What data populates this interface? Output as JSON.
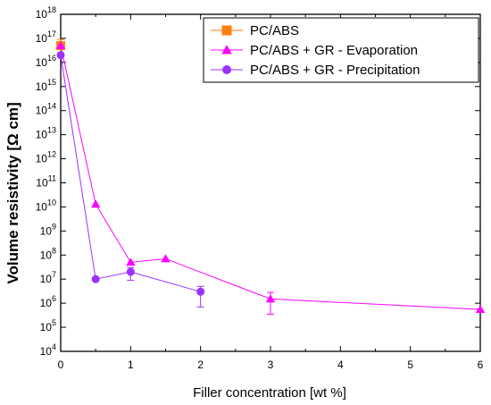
{
  "chart_data": {
    "type": "line",
    "xlabel": "Filler concentration [wt %]",
    "ylabel": "Volume resistivity [Ω cm]",
    "xlim": [
      0,
      6
    ],
    "ylim_exponent": [
      4,
      18
    ],
    "y_scale": "log",
    "x_ticks": [
      "0",
      "1",
      "2",
      "3",
      "4",
      "5",
      "6"
    ],
    "y_tick_exponents": [
      "4",
      "5",
      "6",
      "7",
      "8",
      "9",
      "10",
      "11",
      "12",
      "13",
      "14",
      "15",
      "16",
      "17",
      "18"
    ],
    "y_tick_base": "10",
    "legend_position": "top-right",
    "grid": false,
    "series": [
      {
        "name": "PC/ABS",
        "marker": "square",
        "color": "#ff7f0e",
        "points": [
          {
            "x": 0,
            "y": 5e+16,
            "err_low": 2.5e+16,
            "err_high": 9e+16
          }
        ]
      },
      {
        "name": "PC/ABS + GR - Evaporation",
        "marker": "triangle",
        "color": "#ff00ff",
        "points": [
          {
            "x": 0,
            "y": 5e+16
          },
          {
            "x": 0.5,
            "y": 13000000000.0
          },
          {
            "x": 1,
            "y": 50000000.0
          },
          {
            "x": 1.5,
            "y": 70000000.0
          },
          {
            "x": 3,
            "y": 1500000.0,
            "err_low": 350000.0,
            "err_high": 2800000.0
          },
          {
            "x": 6,
            "y": 550000.0
          }
        ]
      },
      {
        "name": "PC/ABS + GR - Precipitation",
        "marker": "circle",
        "color": "#9b30ff",
        "points": [
          {
            "x": 0,
            "y": 2e+16
          },
          {
            "x": 0.5,
            "y": 10000000.0
          },
          {
            "x": 1,
            "y": 20000000.0,
            "err_low": 9000000.0,
            "err_high": 30000000.0
          },
          {
            "x": 2,
            "y": 3000000.0,
            "err_low": 700000.0,
            "err_high": 5000000.0
          }
        ]
      }
    ]
  }
}
